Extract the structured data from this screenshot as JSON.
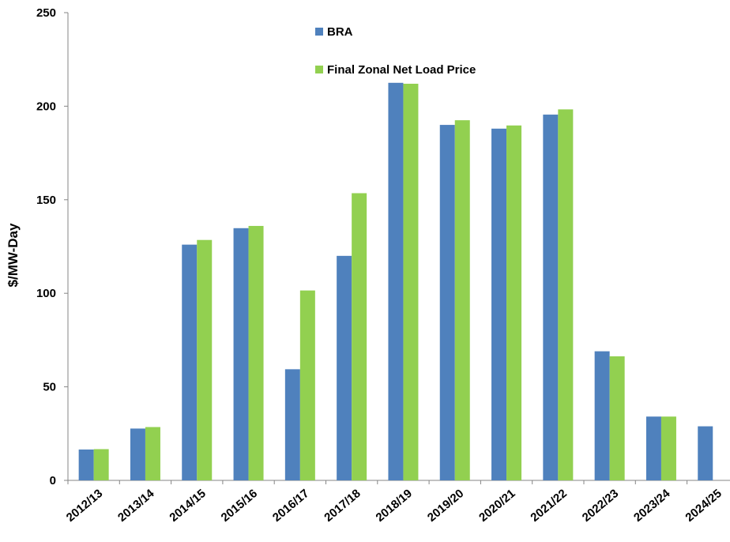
{
  "chart_data": {
    "type": "bar",
    "title": "",
    "xlabel": "",
    "ylabel": "$/MW-Day",
    "ylim": [
      0,
      250
    ],
    "yticks": [
      0,
      50,
      100,
      150,
      200,
      250
    ],
    "grid": false,
    "legend_position": "top-center",
    "categories": [
      "2012/13",
      "2013/14",
      "2014/15",
      "2015/16",
      "2016/17",
      "2017/18",
      "2018/19",
      "2019/20",
      "2020/21",
      "2021/22",
      "2022/23",
      "2023/24",
      "2024/25"
    ],
    "series": [
      {
        "name": "BRA",
        "color": "#4f81bd",
        "values": [
          16.5,
          27.7,
          126.0,
          134.8,
          59.4,
          120.0,
          212.5,
          190.0,
          188.0,
          195.5,
          69.0,
          34.1,
          28.9
        ]
      },
      {
        "name": "Final Zonal Net Load Price",
        "color": "#92d050",
        "values": [
          16.7,
          28.5,
          128.5,
          136.0,
          101.5,
          153.5,
          212.0,
          192.5,
          189.7,
          198.3,
          66.3,
          34.1,
          null
        ]
      }
    ]
  }
}
